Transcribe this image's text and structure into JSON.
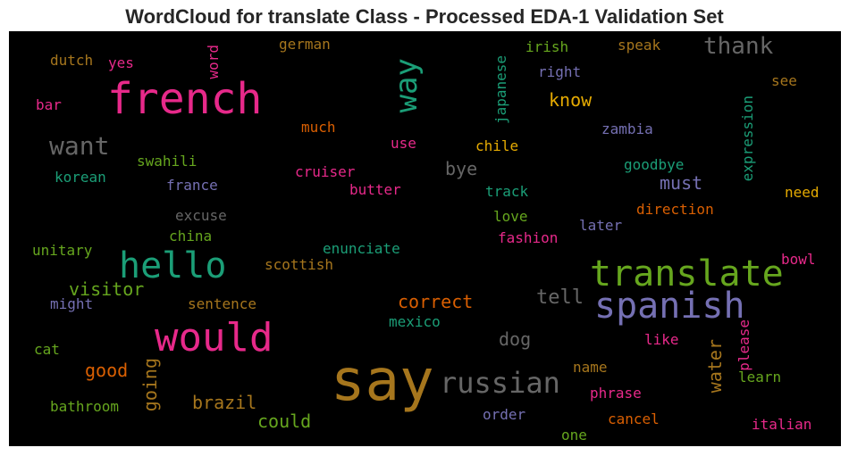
{
  "chart_data": {
    "type": "wordcloud",
    "title": "WordCloud for translate Class - Processed EDA-1 Validation Set",
    "background": "#000000",
    "colormap": "Dark2",
    "words": [
      {
        "text": "say",
        "color": "#a6761d"
      },
      {
        "text": "french",
        "color": "#e7298a"
      },
      {
        "text": "translate",
        "color": "#66a61e"
      },
      {
        "text": "spanish",
        "color": "#7570b3"
      },
      {
        "text": "would",
        "color": "#e7298a"
      },
      {
        "text": "hello",
        "color": "#1b9e77"
      },
      {
        "text": "russian",
        "color": "#666666"
      },
      {
        "text": "way",
        "color": "#1b9e77"
      },
      {
        "text": "want",
        "color": "#666666"
      },
      {
        "text": "thank",
        "color": "#666666"
      },
      {
        "text": "correct",
        "color": "#d95f02"
      },
      {
        "text": "visitor",
        "color": "#66a61e"
      },
      {
        "text": "tell",
        "color": "#666666"
      },
      {
        "text": "going",
        "color": "#a6761d"
      },
      {
        "text": "good",
        "color": "#d95f02"
      },
      {
        "text": "brazil",
        "color": "#a6761d"
      },
      {
        "text": "could",
        "color": "#66a61e"
      },
      {
        "text": "dog",
        "color": "#666666"
      },
      {
        "text": "water",
        "color": "#a6761d"
      },
      {
        "text": "bye",
        "color": "#666666"
      },
      {
        "text": "must",
        "color": "#7570b3"
      },
      {
        "text": "know",
        "color": "#e6ab02"
      },
      {
        "text": "japanese",
        "color": "#1b9e77"
      },
      {
        "text": "expression",
        "color": "#1b9e77"
      },
      {
        "text": "dutch",
        "color": "#a6761d"
      },
      {
        "text": "yes",
        "color": "#e7298a"
      },
      {
        "text": "word",
        "color": "#e7298a"
      },
      {
        "text": "german",
        "color": "#a6761d"
      },
      {
        "text": "irish",
        "color": "#66a61e"
      },
      {
        "text": "speak",
        "color": "#a6761d"
      },
      {
        "text": "right",
        "color": "#7570b3"
      },
      {
        "text": "see",
        "color": "#a6761d"
      },
      {
        "text": "bar",
        "color": "#e7298a"
      },
      {
        "text": "much",
        "color": "#d95f02"
      },
      {
        "text": "zambia",
        "color": "#7570b3"
      },
      {
        "text": "use",
        "color": "#e7298a"
      },
      {
        "text": "chile",
        "color": "#e6ab02"
      },
      {
        "text": "swahili",
        "color": "#66a61e"
      },
      {
        "text": "goodbye",
        "color": "#1b9e77"
      },
      {
        "text": "korean",
        "color": "#1b9e77"
      },
      {
        "text": "cruiser",
        "color": "#e7298a"
      },
      {
        "text": "france",
        "color": "#7570b3"
      },
      {
        "text": "butter",
        "color": "#e7298a"
      },
      {
        "text": "track",
        "color": "#1b9e77"
      },
      {
        "text": "need",
        "color": "#e6ab02"
      },
      {
        "text": "excuse",
        "color": "#666666"
      },
      {
        "text": "direction",
        "color": "#d95f02"
      },
      {
        "text": "love",
        "color": "#66a61e"
      },
      {
        "text": "china",
        "color": "#66a61e"
      },
      {
        "text": "later",
        "color": "#7570b3"
      },
      {
        "text": "fashion",
        "color": "#e7298a"
      },
      {
        "text": "unitary",
        "color": "#66a61e"
      },
      {
        "text": "enunciate",
        "color": "#1b9e77"
      },
      {
        "text": "scottish",
        "color": "#a6761d"
      },
      {
        "text": "bowl",
        "color": "#e7298a"
      },
      {
        "text": "might",
        "color": "#7570b3"
      },
      {
        "text": "sentence",
        "color": "#a6761d"
      },
      {
        "text": "please",
        "color": "#e7298a"
      },
      {
        "text": "mexico",
        "color": "#1b9e77"
      },
      {
        "text": "cat",
        "color": "#66a61e"
      },
      {
        "text": "like",
        "color": "#e7298a"
      },
      {
        "text": "name",
        "color": "#a6761d"
      },
      {
        "text": "learn",
        "color": "#66a61e"
      },
      {
        "text": "phrase",
        "color": "#e7298a"
      },
      {
        "text": "bathroom",
        "color": "#66a61e"
      },
      {
        "text": "order",
        "color": "#7570b3"
      },
      {
        "text": "cancel",
        "color": "#d95f02"
      },
      {
        "text": "italian",
        "color": "#e7298a"
      },
      {
        "text": "one",
        "color": "#66a61e"
      }
    ]
  }
}
